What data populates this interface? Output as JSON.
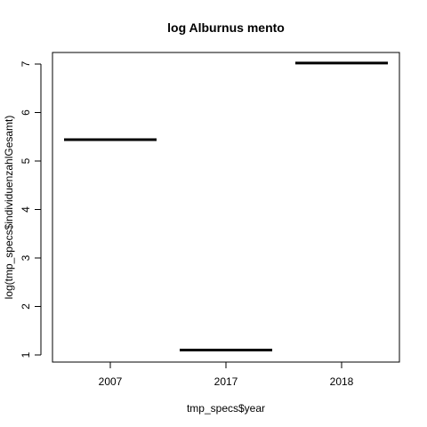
{
  "chart_data": {
    "type": "box",
    "title": "log Alburnus mento",
    "xlabel": "tmp_specs$year",
    "ylabel": "log(tmp_specs$individuenzahlGesamt)",
    "categories": [
      "2007",
      "2017",
      "2018"
    ],
    "values": [
      5.44,
      1.1,
      7.02
    ],
    "ylim": [
      1,
      7
    ],
    "yticks": [
      1,
      2,
      3,
      4,
      5,
      6,
      7
    ],
    "grid": false,
    "legend": "none"
  }
}
